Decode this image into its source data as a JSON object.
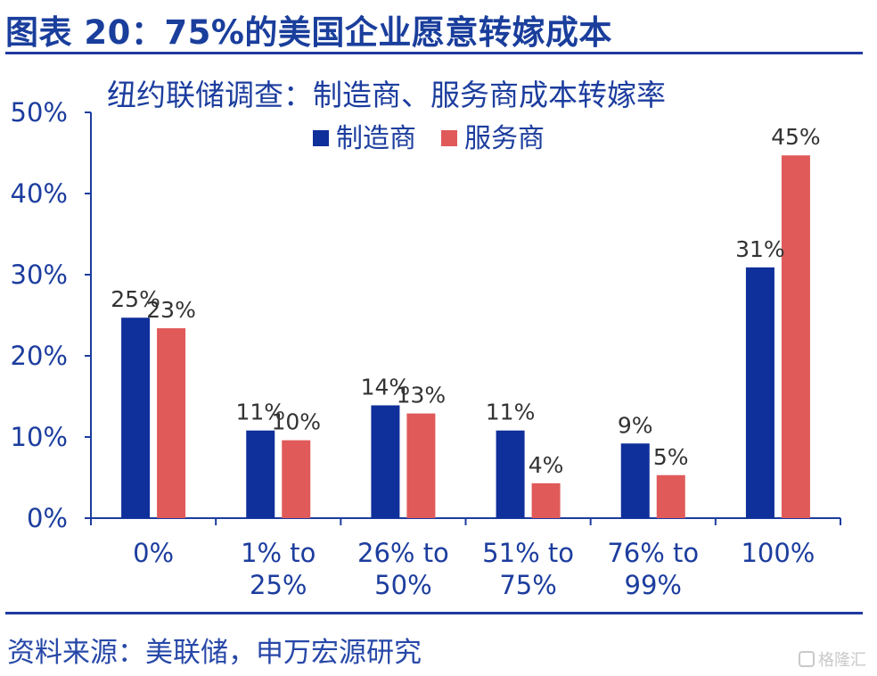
{
  "figure_title": "图表 20：75%的美国企业愿意转嫁成本",
  "source": "资料来源：美联储，申万宏源研究",
  "watermark": "格隆汇",
  "colors": {
    "manufacturer": "#0f2f9a",
    "service": "#e05a5a",
    "axis": "#1c3d9e",
    "rule": "#1f3aa0"
  },
  "chart_data": {
    "type": "bar",
    "title": "纽约联储调查：制造商、服务商成本转嫁率",
    "categories": [
      [
        "0%"
      ],
      [
        "1% to",
        "25%"
      ],
      [
        "26% to",
        "50%"
      ],
      [
        "51% to",
        "75%"
      ],
      [
        "76% to",
        "99%"
      ],
      [
        "100%"
      ]
    ],
    "series": [
      {
        "name": "制造商",
        "values": [
          25,
          11,
          14,
          11,
          9,
          31
        ],
        "labels": [
          "25%",
          "11%",
          "14%",
          "11%",
          "9%",
          "31%"
        ],
        "bar_values": [
          24.7,
          10.8,
          13.9,
          10.8,
          9.2,
          30.9
        ]
      },
      {
        "name": "服务商",
        "values": [
          23,
          10,
          13,
          4,
          5,
          45
        ],
        "labels": [
          "23%",
          "10%",
          "13%",
          "4%",
          "5%",
          "45%"
        ],
        "bar_values": [
          23.4,
          9.6,
          12.9,
          4.3,
          5.3,
          44.7
        ]
      }
    ],
    "yticks": [
      "0%",
      "10%",
      "20%",
      "30%",
      "40%",
      "50%"
    ],
    "ylim": [
      0,
      50
    ],
    "legend": "top",
    "grid": false
  }
}
